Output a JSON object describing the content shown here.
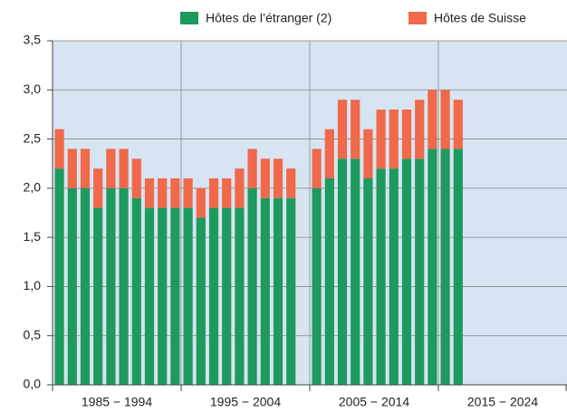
{
  "chart_data": {
    "type": "stacked_bar",
    "categories": [
      null,
      null,
      null,
      null,
      null,
      null,
      null,
      null,
      null,
      null,
      null,
      null,
      null,
      null,
      null,
      null,
      null,
      null,
      null,
      null,
      null,
      null,
      null,
      null,
      null,
      null,
      null,
      null,
      null,
      null,
      null,
      null,
      null,
      null,
      null,
      null,
      null,
      null,
      null,
      null
    ],
    "groups": [
      "1985 − 1994",
      "1995 − 2004",
      "2005 − 2014",
      "2015 − 2024"
    ],
    "series": [
      {
        "name": "Hôtes de l’étranger (2)",
        "color": "#1e9a5e",
        "values": [
          2.2,
          2.0,
          2.0,
          1.8,
          2.0,
          2.0,
          1.9,
          1.8,
          1.8,
          1.8,
          1.8,
          1.7,
          1.8,
          1.8,
          1.8,
          2.0,
          1.9,
          1.9,
          1.9,
          null,
          2.0,
          2.1,
          2.3,
          2.3,
          2.1,
          2.2,
          2.2,
          2.3,
          2.3,
          2.4,
          2.4,
          2.4,
          null,
          null,
          null,
          null,
          null,
          null,
          null,
          null
        ]
      },
      {
        "name": "Hôtes de Suisse",
        "color": "#f0694a",
        "values": [
          0.4,
          0.4,
          0.4,
          0.4,
          0.4,
          0.4,
          0.4,
          0.3,
          0.3,
          0.3,
          0.3,
          0.3,
          0.3,
          0.3,
          0.4,
          0.4,
          0.4,
          0.4,
          0.3,
          null,
          0.4,
          0.5,
          0.6,
          0.6,
          0.5,
          0.6,
          0.6,
          0.5,
          0.6,
          0.6,
          0.6,
          0.5,
          null,
          null,
          null,
          null,
          null,
          null,
          null,
          null
        ]
      }
    ],
    "ylim": [
      0,
      3.5
    ],
    "yticks": [
      {
        "value": 0,
        "label": "0,0"
      },
      {
        "value": 0.5,
        "label": "0,5"
      },
      {
        "value": 1,
        "label": "1,0"
      },
      {
        "value": 1.5,
        "label": "1,5"
      },
      {
        "value": 2,
        "label": "2,0"
      },
      {
        "value": 2.5,
        "label": "2,5"
      },
      {
        "value": 3,
        "label": "3,0"
      },
      {
        "value": 3.5,
        "label": "3,5"
      }
    ],
    "grid": true,
    "legend": "top-right"
  }
}
